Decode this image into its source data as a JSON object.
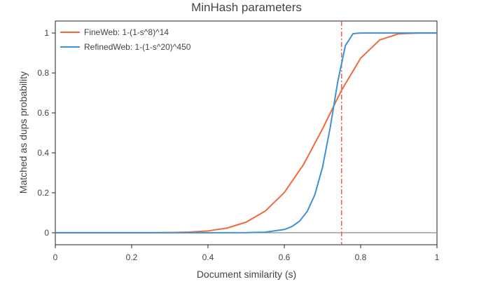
{
  "chart_data": {
    "type": "line",
    "title": "MinHash parameters",
    "xlabel": "Document similarity (s)",
    "ylabel": "Matched as dups probability",
    "xlim": [
      0,
      1
    ],
    "ylim": [
      -0.06,
      1.06
    ],
    "xticks": [
      0,
      0.2,
      0.4,
      0.6,
      0.8,
      1
    ],
    "xtick_labels": [
      "0",
      "0.2",
      "0.4",
      "0.6",
      "0.8",
      "1"
    ],
    "yticks": [
      0,
      0.2,
      0.4,
      0.6,
      0.8,
      1
    ],
    "ytick_labels": [
      "0",
      "0.2",
      "0.4",
      "0.6",
      "0.8",
      "1"
    ],
    "legend_position": "top-left",
    "threshold_line": {
      "x": 0.75,
      "color": "#ef5a5a",
      "style": "dash-dot"
    },
    "zero_line": {
      "y": 0,
      "color": "#888888"
    },
    "series": [
      {
        "name": "FineWeb: 1-(1-s^8)^14",
        "color": "#ef6a3c",
        "x": [
          0,
          0.05,
          0.1,
          0.15,
          0.2,
          0.25,
          0.3,
          0.35,
          0.4,
          0.45,
          0.5,
          0.55,
          0.6,
          0.65,
          0.7,
          0.75,
          0.8,
          0.85,
          0.9,
          0.95,
          1
        ],
        "y": [
          0,
          0,
          0,
          0,
          0,
          0.0002,
          0.0009,
          0.0031,
          0.0091,
          0.0234,
          0.0532,
          0.1084,
          0.2014,
          0.3403,
          0.5196,
          0.7138,
          0.8738,
          0.9654,
          0.9961,
          0.9999,
          1
        ]
      },
      {
        "name": "RefinedWeb: 1-(1-s^20)^450",
        "color": "#3f8fd9",
        "x": [
          0,
          0.1,
          0.2,
          0.3,
          0.4,
          0.5,
          0.55,
          0.6,
          0.62,
          0.64,
          0.66,
          0.68,
          0.7,
          0.72,
          0.74,
          0.76,
          0.78,
          0.8,
          0.82,
          0.85,
          0.9,
          1
        ],
        "y": [
          0,
          0,
          0,
          0,
          0,
          0.0004,
          0.0029,
          0.0163,
          0.0312,
          0.0583,
          0.1067,
          0.1903,
          0.327,
          0.5244,
          0.7559,
          0.9369,
          0.9968,
          1.0,
          1.0,
          1.0,
          1.0,
          1
        ]
      }
    ]
  }
}
